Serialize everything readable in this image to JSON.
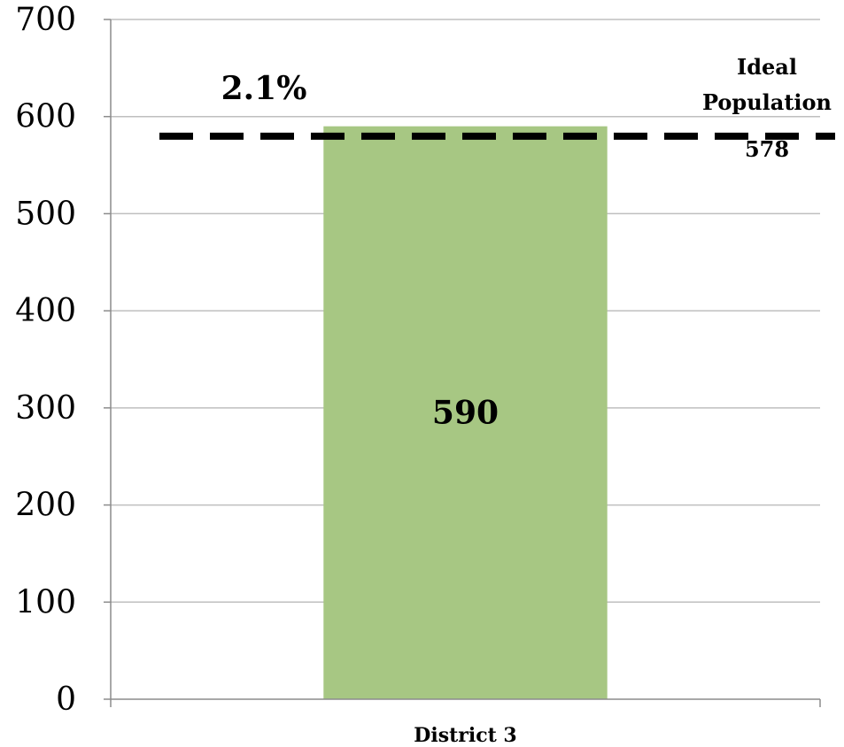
{
  "chart_data": {
    "type": "bar",
    "categories": [
      "District 3"
    ],
    "values": [
      590
    ],
    "ylim": [
      0,
      700
    ],
    "yticks": [
      0,
      100,
      200,
      300,
      400,
      500,
      600,
      700
    ],
    "grid": true,
    "bar_color": "#a7c783",
    "data_labels": [
      "590"
    ],
    "reference_line": {
      "value": 578,
      "label_line1": "Ideal",
      "label_line2": "Population",
      "value_label": "578",
      "style": "dashed",
      "color": "#000000"
    },
    "annotation": "2.1%"
  }
}
